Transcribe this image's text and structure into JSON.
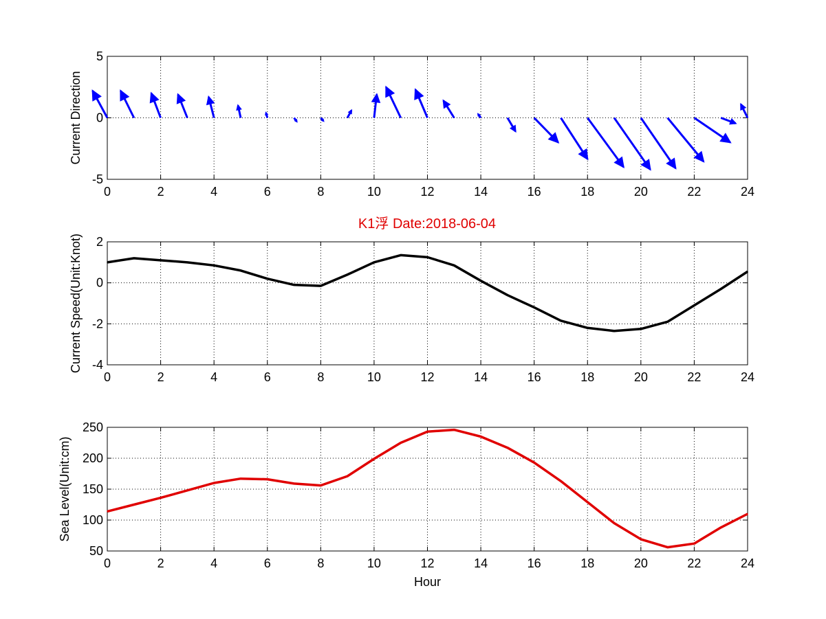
{
  "title": "K1浮   Date:2018-06-04",
  "colors": {
    "direction": "#0000ff",
    "speed": "#000000",
    "sea_level": "#e00000",
    "title": "#e00000"
  },
  "chart_data": [
    {
      "type": "quiver",
      "ylabel": "Current Direction",
      "xlabel": "",
      "xlim": [
        0,
        24
      ],
      "ylim": [
        -5,
        5
      ],
      "xticks": [
        "0",
        "2",
        "4",
        "6",
        "8",
        "10",
        "12",
        "14",
        "16",
        "18",
        "20",
        "22",
        "24"
      ],
      "yticks": [
        "-5",
        "0",
        "5"
      ],
      "grid": true,
      "x": [
        0,
        1,
        2,
        3,
        4,
        5,
        6,
        7,
        8,
        9,
        10,
        11,
        12,
        13,
        14,
        15,
        16,
        17,
        18,
        19,
        20,
        21,
        22,
        23,
        24
      ],
      "u": [
        -0.55,
        -0.5,
        -0.35,
        -0.35,
        -0.2,
        -0.1,
        -0.05,
        0.1,
        0.1,
        0.15,
        0.1,
        -0.55,
        -0.45,
        -0.4,
        -0.1,
        0.3,
        0.9,
        1.0,
        1.35,
        1.35,
        1.3,
        1.35,
        1.35,
        0.55,
        -0.25
      ],
      "v": [
        2.2,
        2.2,
        2.0,
        1.9,
        1.7,
        1.0,
        0.4,
        -0.3,
        -0.25,
        0.6,
        1.9,
        2.5,
        2.3,
        1.4,
        0.3,
        -1.1,
        -2.0,
        -3.35,
        -4.0,
        -4.2,
        -4.1,
        -3.55,
        -2.0,
        -0.45,
        1.1
      ]
    },
    {
      "type": "line",
      "ylabel": "Current Speed(Unit:Knot)",
      "xlabel": "",
      "xlim": [
        0,
        24
      ],
      "ylim": [
        -4,
        2
      ],
      "xticks": [
        "0",
        "2",
        "4",
        "6",
        "8",
        "10",
        "12",
        "14",
        "16",
        "18",
        "20",
        "22",
        "24"
      ],
      "yticks": [
        "-4",
        "-2",
        "0",
        "2"
      ],
      "grid": true,
      "x": [
        0,
        1,
        2,
        3,
        4,
        5,
        6,
        7,
        8,
        9,
        10,
        11,
        12,
        13,
        14,
        15,
        16,
        17,
        18,
        19,
        20,
        21,
        22,
        23,
        24
      ],
      "y": [
        1.0,
        1.2,
        1.1,
        1.0,
        0.85,
        0.6,
        0.2,
        -0.1,
        -0.15,
        0.4,
        1.0,
        1.35,
        1.25,
        0.85,
        0.1,
        -0.6,
        -1.2,
        -1.85,
        -2.2,
        -2.35,
        -2.25,
        -1.9,
        -1.1,
        -0.3,
        0.55
      ]
    },
    {
      "type": "line",
      "ylabel": "Sea Level(Unit:cm)",
      "xlabel": "Hour",
      "xlim": [
        0,
        24
      ],
      "ylim": [
        50,
        250
      ],
      "xticks": [
        "0",
        "2",
        "4",
        "6",
        "8",
        "10",
        "12",
        "14",
        "16",
        "18",
        "20",
        "22",
        "24"
      ],
      "yticks": [
        "50",
        "100",
        "150",
        "200",
        "250"
      ],
      "grid": true,
      "x": [
        0,
        1,
        2,
        3,
        4,
        5,
        6,
        7,
        8,
        9,
        10,
        11,
        12,
        13,
        14,
        15,
        16,
        17,
        18,
        19,
        20,
        21,
        22,
        23,
        24
      ],
      "y": [
        114,
        125,
        136,
        148,
        160,
        167,
        166,
        159,
        156,
        171,
        199,
        225,
        243,
        246,
        235,
        217,
        193,
        163,
        129,
        95,
        69,
        56,
        62,
        88,
        110
      ]
    }
  ]
}
